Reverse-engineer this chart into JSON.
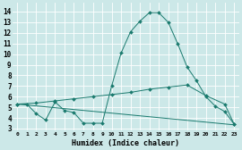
{
  "xlabel": "Humidex (Indice chaleur)",
  "background_color": "#cce8e8",
  "grid_color": "#ffffff",
  "line_color": "#1a7a6e",
  "xlim": [
    -0.5,
    23.5
  ],
  "ylim": [
    2.8,
    14.8
  ],
  "yticks": [
    3,
    4,
    5,
    6,
    7,
    8,
    9,
    10,
    11,
    12,
    13,
    14
  ],
  "xticks": [
    0,
    1,
    2,
    3,
    4,
    5,
    6,
    7,
    8,
    9,
    10,
    11,
    12,
    13,
    14,
    15,
    16,
    17,
    18,
    19,
    20,
    21,
    22,
    23
  ],
  "line1_x": [
    0,
    1,
    2,
    3,
    4,
    5,
    6,
    7,
    8,
    9,
    10,
    11,
    12,
    13,
    14,
    15,
    16,
    17,
    18,
    19,
    20,
    21,
    22,
    23
  ],
  "line1_y": [
    5.3,
    5.3,
    4.4,
    3.8,
    5.5,
    4.7,
    4.5,
    3.5,
    3.5,
    3.5,
    7.0,
    10.1,
    12.1,
    13.1,
    13.9,
    13.9,
    13.0,
    11.0,
    8.8,
    7.5,
    6.0,
    5.1,
    4.6,
    3.4
  ],
  "line2_x": [
    0,
    2,
    4,
    6,
    8,
    10,
    12,
    14,
    16,
    18,
    20,
    22,
    23
  ],
  "line2_y": [
    5.3,
    5.4,
    5.6,
    5.8,
    6.0,
    6.2,
    6.4,
    6.7,
    6.9,
    7.1,
    6.1,
    5.3,
    3.4
  ],
  "line3_x": [
    0,
    23
  ],
  "line3_y": [
    5.3,
    3.35
  ]
}
